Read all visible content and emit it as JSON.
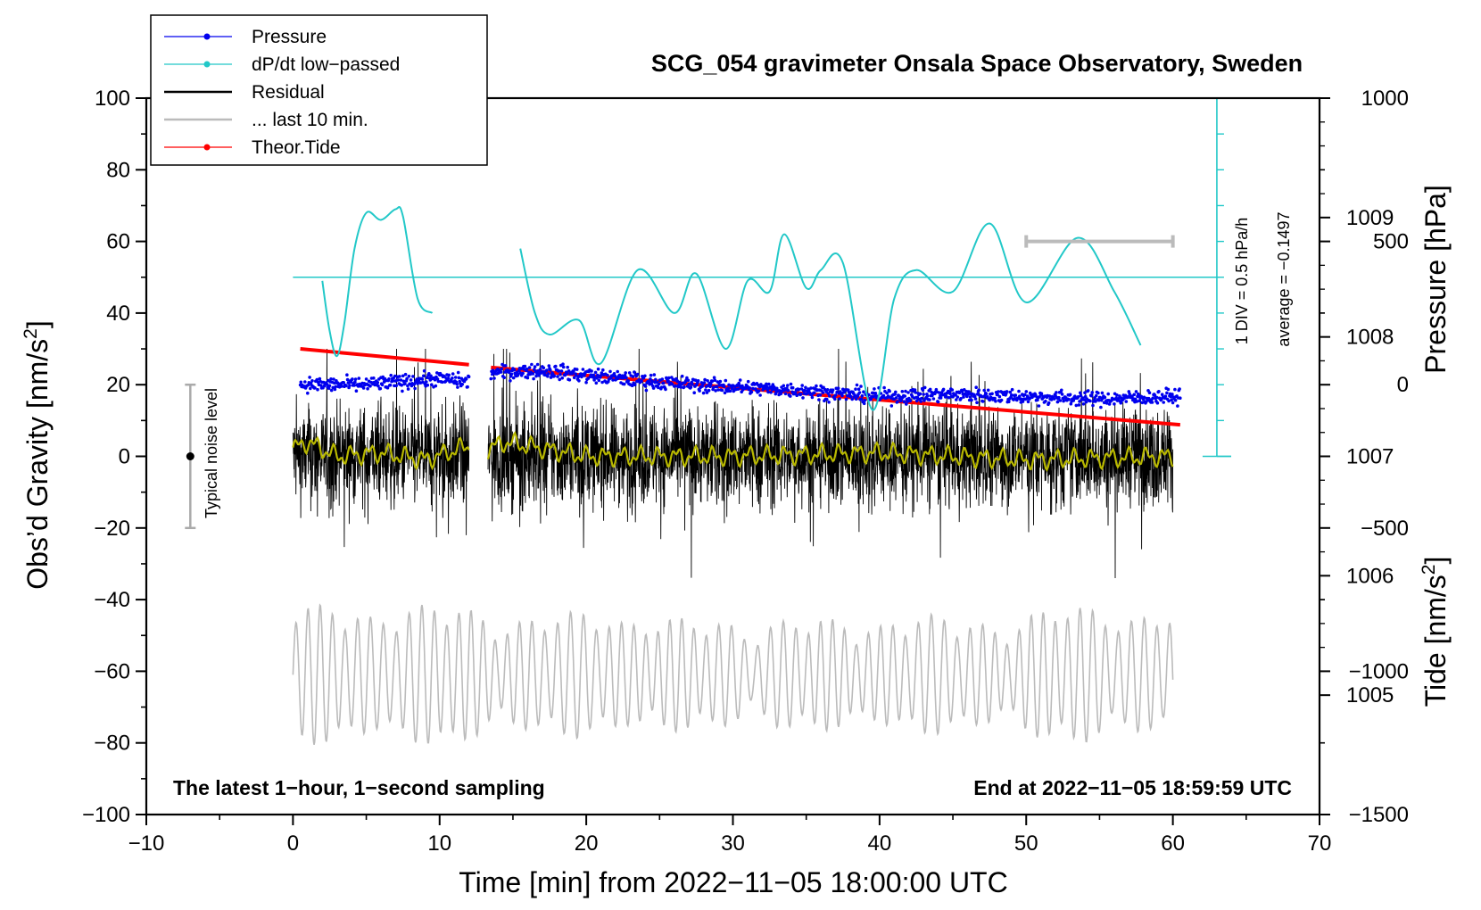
{
  "chart_data": {
    "type": "line",
    "title": "SCG_054 gravimeter Onsala Space Observatory, Sweden",
    "xlabel": "Time [min] from 2022−11−05 18:00:00 UTC",
    "ylabel_left_main": "Obs’d Gravity [nm/s",
    "ylabel_left_sup": "2",
    "ylabel_left_close": "]",
    "ylabel_right_pressure": "Pressure [hPa]",
    "ylabel_right_tide_main": "Tide [nm/s",
    "ylabel_right_tide_sup": "2",
    "ylabel_right_tide_close": "]",
    "xlim": [
      -10,
      70
    ],
    "ylim": [
      -100,
      100
    ],
    "pressure_lim": [
      1004,
      1010
    ],
    "tide_lim": [
      -1500,
      1000
    ],
    "x_ticks": [
      "−10",
      "0",
      "10",
      "20",
      "30",
      "40",
      "50",
      "60",
      "70"
    ],
    "y_ticks": [
      "−100",
      "−80",
      "−60",
      "−40",
      "−20",
      "0",
      "20",
      "40",
      "60",
      "80",
      "100"
    ],
    "pressure_ticks": [
      "1005",
      "1006",
      "1007",
      "1008",
      "1009"
    ],
    "tide_ticks": [
      "−1500",
      "−1000",
      "−500",
      "0",
      "500",
      "1000"
    ],
    "legend": [
      {
        "label": "Pressure",
        "color": "#0000ee",
        "marker": true
      },
      {
        "label": "dP/dt low−passed",
        "color": "#22c8c8",
        "marker": true
      },
      {
        "label": "Residual",
        "color": "#000000",
        "marker": false
      },
      {
        "label": "... last 10 min.",
        "color": "#bbbbbb",
        "marker": false
      },
      {
        "label": "Theor.Tide",
        "color": "#ff0000",
        "marker": true
      }
    ],
    "annotations": {
      "bottom_left": "The latest 1−hour, 1−second sampling",
      "bottom_right": "End at 2022−11−05 18:59:59 UTC",
      "noise": "Typical noise level",
      "div_scale": "1 DIV = 0.5 hPa/h",
      "average": "average = −0.1497"
    },
    "noise_bar": {
      "x": -7,
      "center": 0,
      "range": [
        -20,
        20
      ]
    },
    "last10_bracket": {
      "x_range": [
        50,
        60
      ],
      "tide": 500
    },
    "series": [
      {
        "name": "Pressure",
        "unit": "hPa",
        "color": "#0000ee",
        "segments": [
          [
            0.5,
            12.0
          ],
          [
            13.5,
            60.5
          ]
        ],
        "x": [
          0.5,
          5,
          10,
          12,
          13.5,
          17,
          20,
          25,
          30,
          35,
          40,
          45,
          50,
          55,
          60,
          60.5
        ],
        "y": [
          1007.6,
          1007.6,
          1007.65,
          1007.62,
          1007.7,
          1007.72,
          1007.68,
          1007.62,
          1007.58,
          1007.55,
          1007.5,
          1007.52,
          1007.5,
          1007.48,
          1007.5,
          1007.5
        ]
      },
      {
        "name": "dP/dt low-passed",
        "unit": "gravity-equivalent axis, centre line = average",
        "color": "#22c8c8",
        "segments": [
          [
            2.0,
            9.5
          ],
          [
            15.5,
            57.8
          ]
        ],
        "x": [
          2,
          2.5,
          3,
          3.5,
          4.2,
          5.0,
          6.0,
          7.0,
          7.5,
          8.5,
          9.5,
          15.5,
          16.5,
          17.5,
          19.5,
          21,
          23.5,
          26,
          27.5,
          29.5,
          31,
          32.5,
          33.5,
          35,
          36,
          37.5,
          39.5,
          41,
          42.5,
          45,
          47.5,
          50,
          53.5,
          56,
          57.8
        ],
        "y": [
          49,
          35,
          28,
          37,
          58,
          68,
          66,
          69,
          67,
          44,
          40,
          58,
          40,
          34,
          38,
          26,
          52,
          40,
          51,
          30,
          49,
          46,
          62,
          47,
          52,
          54,
          13,
          44,
          52,
          46,
          65,
          43,
          61,
          46,
          31
        ]
      },
      {
        "name": "Residual",
        "unit": "nm/s^2",
        "color": "#000000",
        "segments": [
          [
            0,
            12.0
          ],
          [
            13.3,
            60.0
          ]
        ],
        "typical_amplitude": 12,
        "peak_range": [
          -34,
          30
        ]
      },
      {
        "name": "Residual smoothed",
        "unit": "nm/s^2",
        "color": "#b8b800",
        "segments": [
          [
            0,
            12.0
          ],
          [
            13.3,
            60.0
          ]
        ],
        "x": [
          0,
          1,
          3,
          6,
          9,
          12,
          13.3,
          14.5,
          20,
          30,
          40,
          50,
          60
        ],
        "y": [
          2,
          4,
          0,
          1,
          -1,
          3,
          2,
          4,
          0,
          0,
          1,
          -1,
          0
        ]
      },
      {
        "name": "... last 10 min.",
        "unit": "nm/s^2",
        "color": "#bbbbbb",
        "x_range": [
          0,
          60
        ],
        "center": -61,
        "amplitude_range": [
          6,
          20
        ],
        "min": -88,
        "max": -32
      },
      {
        "name": "Theor.Tide",
        "unit": "nm/s^2 (tide axis)",
        "color": "#ff0000",
        "segments": [
          [
            0.5,
            12.0
          ],
          [
            13.5,
            60.5
          ]
        ],
        "x": [
          0.5,
          12,
          13.5,
          60.5
        ],
        "y": [
          125,
          70,
          60,
          -140
        ]
      }
    ]
  }
}
